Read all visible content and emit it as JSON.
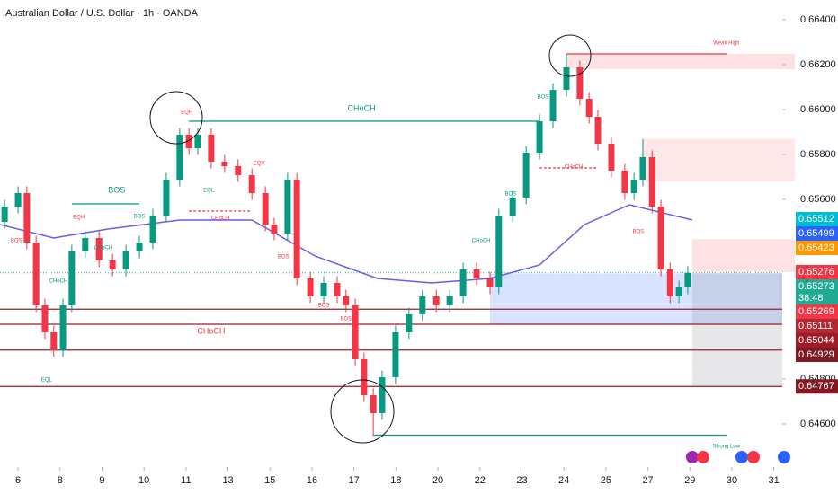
{
  "chart_data": {
    "type": "candlestick",
    "title": "Australian Dollar / U.S. Dollar · 1h · OANDA",
    "xlim": [
      -0.43,
      18.2
    ],
    "ylim": [
      0.64408,
      0.66488
    ],
    "xticks": [
      {
        "value": 0,
        "label": "6"
      },
      {
        "value": 1,
        "label": "8"
      },
      {
        "value": 2,
        "label": "9"
      },
      {
        "value": 3,
        "label": "10"
      },
      {
        "value": 4,
        "label": "11"
      },
      {
        "value": 5,
        "label": "13"
      },
      {
        "value": 6,
        "label": "15"
      },
      {
        "value": 7,
        "label": "16"
      },
      {
        "value": 8,
        "label": "17"
      },
      {
        "value": 9,
        "label": "18"
      },
      {
        "value": 10,
        "label": "20"
      },
      {
        "value": 11,
        "label": "22"
      },
      {
        "value": 12,
        "label": "23"
      },
      {
        "value": 13,
        "label": "24"
      },
      {
        "value": 14,
        "label": "25"
      },
      {
        "value": 15,
        "label": "27"
      },
      {
        "value": 16,
        "label": "29"
      },
      {
        "value": 17,
        "label": "30"
      },
      {
        "value": 18,
        "label": "31"
      }
    ],
    "yticks": [
      {
        "value": 0.664,
        "label": "0.66400"
      },
      {
        "value": 0.662,
        "label": "0.66200"
      },
      {
        "value": 0.66,
        "label": "0.66000"
      },
      {
        "value": 0.658,
        "label": "0.65800"
      },
      {
        "value": 0.656,
        "label": "0.65600"
      },
      {
        "value": 0.648,
        "label": "0.64800"
      },
      {
        "value": 0.646,
        "label": "0.64600"
      }
    ],
    "up_color": "#089981",
    "down_color": "#f23645",
    "x": [
      -0.32,
      0.0,
      0.21,
      0.43,
      0.64,
      0.85,
      1.07,
      1.28,
      1.6,
      1.93,
      2.25,
      2.57,
      2.89,
      3.21,
      3.53,
      3.85,
      4.07,
      4.28,
      4.6,
      4.92,
      5.24,
      5.57,
      5.89,
      6.1,
      6.42,
      6.64,
      6.96,
      7.28,
      7.6,
      7.81,
      8.03,
      8.24,
      8.46,
      8.67,
      8.99,
      9.31,
      9.63,
      9.96,
      10.28,
      10.6,
      10.92,
      11.24,
      11.45,
      11.78,
      12.1,
      12.42,
      12.74,
      13.06,
      13.38,
      13.6,
      13.81,
      14.13,
      14.45,
      14.67,
      14.88,
      15.1,
      15.31,
      15.53,
      15.74,
      15.95
    ],
    "open": [
      0.655,
      0.65568,
      0.65628,
      0.65408,
      0.65128,
      0.65008,
      0.64928,
      0.65128,
      0.65368,
      0.65428,
      0.65328,
      0.65288,
      0.65368,
      0.65408,
      0.65528,
      0.65688,
      0.65888,
      0.65828,
      0.65888,
      0.65768,
      0.65748,
      0.65708,
      0.65628,
      0.65488,
      0.65448,
      0.65688,
      0.65248,
      0.65168,
      0.65228,
      0.65168,
      0.65128,
      0.64888,
      0.64728,
      0.64648,
      0.64808,
      0.65008,
      0.65088,
      0.65168,
      0.65128,
      0.65168,
      0.65288,
      0.65248,
      0.65208,
      0.65528,
      0.65608,
      0.65808,
      0.65948,
      0.66088,
      0.66188,
      0.66048,
      0.65968,
      0.65848,
      0.65728,
      0.65628,
      0.65688,
      0.65788,
      0.65568,
      0.65288,
      0.65168,
      0.65208
    ],
    "high": [
      0.65598,
      0.65658,
      0.65658,
      0.65438,
      0.65158,
      0.65038,
      0.65158,
      0.65398,
      0.65458,
      0.65458,
      0.65358,
      0.65398,
      0.65438,
      0.65558,
      0.65718,
      0.65918,
      0.65918,
      0.65918,
      0.65918,
      0.65798,
      0.65778,
      0.65738,
      0.65658,
      0.65518,
      0.65718,
      0.65718,
      0.65278,
      0.65258,
      0.65258,
      0.65198,
      0.65158,
      0.64918,
      0.64758,
      0.64838,
      0.65038,
      0.65118,
      0.65198,
      0.65198,
      0.65198,
      0.65318,
      0.65318,
      0.65278,
      0.65558,
      0.65638,
      0.65838,
      0.65978,
      0.66118,
      0.66248,
      0.66218,
      0.66078,
      0.65998,
      0.65878,
      0.65758,
      0.65718,
      0.65868,
      0.65818,
      0.65598,
      0.65318,
      0.65238,
      0.65303
    ],
    "low": [
      0.6547,
      0.65538,
      0.65378,
      0.65098,
      0.64978,
      0.64898,
      0.64898,
      0.65098,
      0.65338,
      0.65298,
      0.65258,
      0.65258,
      0.65338,
      0.65378,
      0.65498,
      0.65658,
      0.65798,
      0.65798,
      0.65738,
      0.65718,
      0.65678,
      0.65598,
      0.65458,
      0.65418,
      0.65418,
      0.65218,
      0.65138,
      0.65138,
      0.65138,
      0.65098,
      0.64858,
      0.64698,
      0.64548,
      0.64618,
      0.64778,
      0.64978,
      0.65058,
      0.65098,
      0.65098,
      0.65138,
      0.65218,
      0.65178,
      0.65178,
      0.65498,
      0.65578,
      0.65778,
      0.65918,
      0.66058,
      0.66018,
      0.65938,
      0.65818,
      0.65698,
      0.65598,
      0.65598,
      0.65658,
      0.65538,
      0.65258,
      0.65138,
      0.65138,
      0.65178
    ],
    "close": [
      0.65568,
      0.65628,
      0.65408,
      0.65128,
      0.65008,
      0.64928,
      0.65128,
      0.65368,
      0.65428,
      0.65328,
      0.65288,
      0.65368,
      0.65408,
      0.65528,
      0.65688,
      0.65888,
      0.65828,
      0.65888,
      0.65768,
      0.65748,
      0.65708,
      0.65628,
      0.65488,
      0.65448,
      0.65688,
      0.65248,
      0.65168,
      0.65228,
      0.65168,
      0.65128,
      0.64888,
      0.64728,
      0.64648,
      0.64808,
      0.65008,
      0.65088,
      0.65168,
      0.65128,
      0.65168,
      0.65288,
      0.65248,
      0.65208,
      0.65528,
      0.65608,
      0.65808,
      0.65948,
      0.66088,
      0.66188,
      0.66048,
      0.65968,
      0.65848,
      0.65728,
      0.65628,
      0.65688,
      0.65788,
      0.65568,
      0.65288,
      0.65168,
      0.65208,
      0.65273
    ],
    "moving_average": {
      "color": "#6c5ce7",
      "x": [
        -0.43,
        0.85,
        2.14,
        3.85,
        5.57,
        7.07,
        8.56,
        9.85,
        11.24,
        12.42,
        13.49,
        14.56,
        16.06
      ],
      "values": [
        0.65488,
        0.65428,
        0.65468,
        0.65508,
        0.65508,
        0.65348,
        0.65248,
        0.65228,
        0.65248,
        0.65308,
        0.65488,
        0.65576,
        0.65508
      ]
    },
    "zones": [
      {
        "x0": 13.06,
        "x1": 18.5,
        "p0": 0.66248,
        "p1": 0.6618,
        "color": "rgba(242,54,69,0.15)"
      },
      {
        "x0": 14.88,
        "x1": 18.5,
        "p0": 0.6587,
        "p1": 0.6568,
        "color": "rgba(242,54,69,0.12)"
      },
      {
        "x0": 16.06,
        "x1": 18.5,
        "p0": 0.65423,
        "p1": 0.65276,
        "color": "rgba(242,54,69,0.15)"
      },
      {
        "x0": 11.24,
        "x1": 18.2,
        "p0": 0.65269,
        "p1": 0.65044,
        "color": "rgba(41,98,255,0.18)"
      },
      {
        "x0": 16.06,
        "x1": 18.2,
        "p0": 0.65273,
        "p1": 0.64767,
        "color": "rgba(120,123,134,0.18)"
      }
    ],
    "levels": [
      {
        "price": 0.65111,
        "color": "#9c1c28"
      },
      {
        "price": 0.65044,
        "color": "#9c1c28"
      },
      {
        "price": 0.64929,
        "color": "#9c1c28"
      },
      {
        "price": 0.64767,
        "color": "#9c1c28"
      }
    ],
    "structure_lines": [
      {
        "x0": 4.07,
        "x1": 12.42,
        "price": 0.65948,
        "color": "#089981",
        "dashed": false
      },
      {
        "x0": 1.28,
        "x1": 2.89,
        "price": 0.6558,
        "color": "#089981",
        "dashed": false
      },
      {
        "x0": 8.46,
        "x1": 16.87,
        "price": 0.6455,
        "color": "#089981",
        "dashed": false
      },
      {
        "x0": 13.06,
        "x1": 16.87,
        "price": 0.66248,
        "color": "#f23645",
        "dashed": false
      },
      {
        "x0": 12.42,
        "x1": 13.81,
        "price": 0.6574,
        "color": "#f23645",
        "dashed": true
      },
      {
        "x0": 4.07,
        "x1": 5.57,
        "price": 0.65548,
        "color": "#f23645",
        "dashed": true
      }
    ],
    "annotations": [
      {
        "text": "BOS",
        "x": 2.35,
        "price": 0.6564,
        "color": "#089981",
        "size": 9
      },
      {
        "text": "CHoCH",
        "x": 8.18,
        "price": 0.66004,
        "color": "#089981",
        "size": 9
      },
      {
        "text": "CHoCH",
        "x": 4.6,
        "price": 0.65012,
        "color": "#f23645",
        "size": 9
      },
      {
        "text": "EQH",
        "x": 4.02,
        "price": 0.65988,
        "color": "#f23645",
        "size": 6
      },
      {
        "text": "EQH",
        "x": 1.45,
        "price": 0.6552,
        "color": "#f23645",
        "size": 6
      },
      {
        "text": "EQH",
        "x": 5.74,
        "price": 0.6576,
        "color": "#f23645",
        "size": 6
      },
      {
        "text": "EQL",
        "x": 4.54,
        "price": 0.6564,
        "color": "#089981",
        "size": 6
      },
      {
        "text": "EQL",
        "x": 0.68,
        "price": 0.64796,
        "color": "#089981",
        "size": 6
      },
      {
        "text": "BOS",
        "x": 2.89,
        "price": 0.65524,
        "color": "#089981",
        "size": 6
      },
      {
        "text": "CHoCH",
        "x": 2.03,
        "price": 0.65384,
        "color": "#089981",
        "size": 6
      },
      {
        "text": "CHoCH",
        "x": 0.96,
        "price": 0.65236,
        "color": "#089981",
        "size": 6
      },
      {
        "text": "BOS",
        "x": -0.04,
        "price": 0.65416,
        "color": "#f23645",
        "size": 6
      },
      {
        "text": "CHoCH",
        "x": 4.82,
        "price": 0.65516,
        "color": "#f23645",
        "size": 6
      },
      {
        "text": "BOS",
        "x": 6.32,
        "price": 0.65344,
        "color": "#f23645",
        "size": 6
      },
      {
        "text": "BOS",
        "x": 7.28,
        "price": 0.65128,
        "color": "#f23645",
        "size": 6
      },
      {
        "text": "BOS",
        "x": 7.81,
        "price": 0.65068,
        "color": "#f23645",
        "size": 6
      },
      {
        "text": "CHoCH",
        "x": 11.03,
        "price": 0.65416,
        "color": "#089981",
        "size": 6
      },
      {
        "text": "BOS",
        "x": 11.73,
        "price": 0.65624,
        "color": "#089981",
        "size": 6
      },
      {
        "text": "BOS",
        "x": 12.5,
        "price": 0.66056,
        "color": "#089981",
        "size": 6
      },
      {
        "text": "CHoCH",
        "x": 13.23,
        "price": 0.65744,
        "color": "#f23645",
        "size": 6
      },
      {
        "text": "BOS",
        "x": 14.77,
        "price": 0.65456,
        "color": "#f23645",
        "size": 6
      },
      {
        "text": "Weak High",
        "x": 16.87,
        "price": 0.66296,
        "color": "#f23645",
        "size": 6
      },
      {
        "text": "Strong Low",
        "x": 16.87,
        "price": 0.645,
        "color": "#089981",
        "size": 6
      }
    ],
    "current_price": 0.65273,
    "price_labels": [
      {
        "value": 0.65512,
        "label": "0.65512",
        "color": "#00bcd4"
      },
      {
        "value": 0.65499,
        "label": "0.65499",
        "color": "#2962ff"
      },
      {
        "value": 0.65423,
        "label": "0.65423",
        "color": "#ff9800"
      },
      {
        "value": 0.65276,
        "label": "0.65276",
        "color": "#f23645"
      },
      {
        "value": 0.65273,
        "label": "0.65273",
        "color": "#22ab94",
        "countdown": "38:48"
      },
      {
        "value": 0.65269,
        "label": "0.65269",
        "color": "#f23645"
      },
      {
        "value": 0.65111,
        "label": "0.65111",
        "color": "#b22833"
      },
      {
        "value": 0.65044,
        "label": "0.65044",
        "color": "#9c1c28"
      },
      {
        "value": 0.64929,
        "label": "0.64929",
        "color": "#801922"
      },
      {
        "value": 0.64767,
        "label": "0.64767",
        "color": "#801922"
      }
    ]
  }
}
